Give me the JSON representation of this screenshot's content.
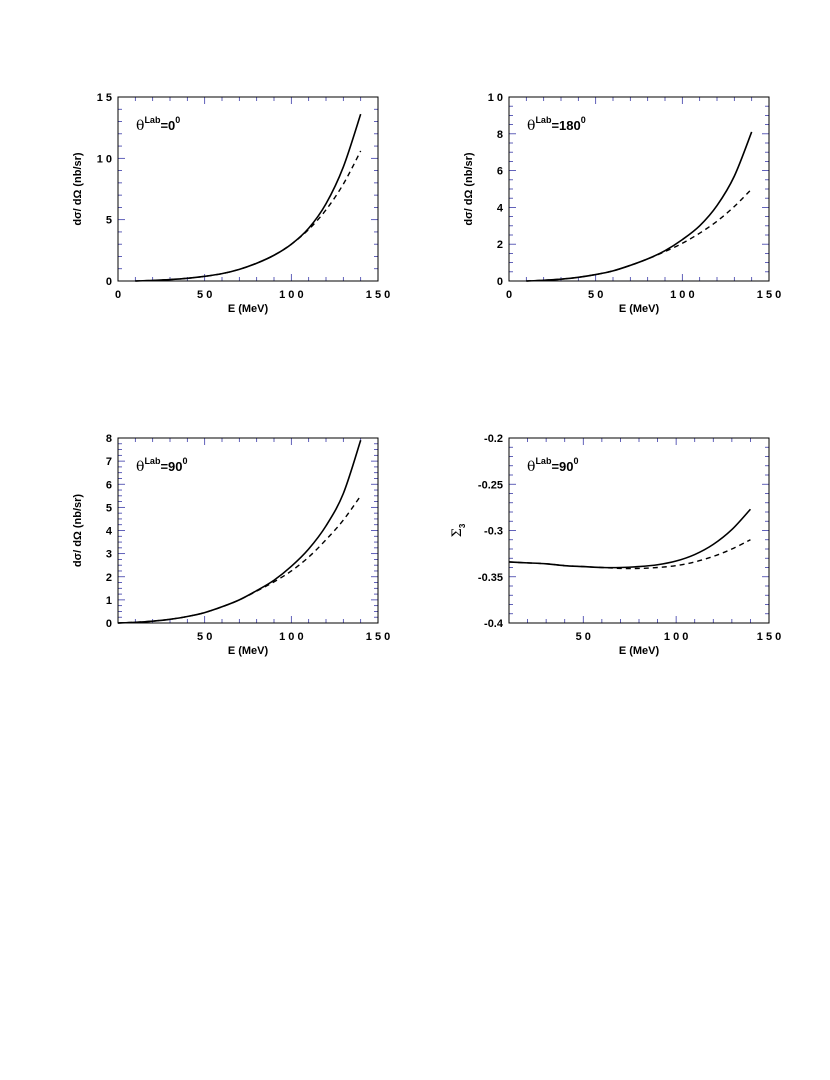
{
  "chart_data": [
    {
      "type": "line",
      "annotation": {
        "theta": "θ",
        "sup1": "Lab",
        "eq": "=0",
        "sup2": "0"
      },
      "xlabel": "E  (MeV)",
      "ylabel": "dσ/ dΩ  (nb/sr)",
      "xlim": [
        0,
        150
      ],
      "ylim": [
        0,
        15
      ],
      "xticks": [
        0,
        50,
        100,
        150
      ],
      "xtick_labels": [
        "0",
        "5 0",
        "1 0 0",
        "1 5 0"
      ],
      "yticks": [
        0,
        5,
        10,
        15
      ],
      "ytick_labels": [
        "0",
        "5",
        "1 0",
        "1 5"
      ],
      "series": [
        {
          "style": "solid",
          "x": [
            10,
            20,
            30,
            40,
            50,
            60,
            70,
            80,
            90,
            100,
            110,
            120,
            130,
            140
          ],
          "y": [
            0.0,
            0.05,
            0.12,
            0.22,
            0.38,
            0.6,
            0.95,
            1.45,
            2.1,
            3.0,
            4.3,
            6.3,
            9.3,
            13.6
          ]
        },
        {
          "style": "dashed",
          "x": [
            10,
            20,
            30,
            40,
            50,
            60,
            70,
            80,
            90,
            100,
            110,
            120,
            130,
            140
          ],
          "y": [
            0.0,
            0.05,
            0.12,
            0.22,
            0.38,
            0.6,
            0.95,
            1.45,
            2.1,
            3.0,
            4.2,
            5.8,
            7.9,
            10.6
          ]
        }
      ]
    },
    {
      "type": "line",
      "annotation": {
        "theta": "θ",
        "sup1": "Lab",
        "eq": "=180",
        "sup2": "0"
      },
      "xlabel": "E  (MeV)",
      "ylabel": "dσ/ dΩ  (nb/sr)",
      "xlim": [
        0,
        150
      ],
      "ylim": [
        0,
        10
      ],
      "xticks": [
        0,
        50,
        100,
        150
      ],
      "xtick_labels": [
        "0",
        "5 0",
        "1 0 0",
        "1 5 0"
      ],
      "yticks": [
        0,
        2,
        4,
        6,
        8,
        10
      ],
      "ytick_labels": [
        "0",
        "2",
        "4",
        "6",
        "8",
        "1 0"
      ],
      "series": [
        {
          "style": "solid",
          "x": [
            10,
            20,
            30,
            40,
            50,
            60,
            70,
            80,
            90,
            100,
            110,
            120,
            130,
            140
          ],
          "y": [
            0.0,
            0.04,
            0.1,
            0.2,
            0.35,
            0.55,
            0.85,
            1.2,
            1.65,
            2.25,
            3.0,
            4.1,
            5.7,
            8.1
          ]
        },
        {
          "style": "dashed",
          "x": [
            10,
            20,
            30,
            40,
            50,
            60,
            70,
            80,
            90,
            100,
            110,
            120,
            130,
            140
          ],
          "y": [
            0.0,
            0.04,
            0.1,
            0.2,
            0.35,
            0.55,
            0.85,
            1.2,
            1.6,
            2.05,
            2.6,
            3.25,
            4.05,
            5.0
          ]
        }
      ]
    },
    {
      "type": "line",
      "annotation": {
        "theta": "θ",
        "sup1": "Lab",
        "eq": "=90",
        "sup2": "0"
      },
      "xlabel": "E  (MeV)",
      "ylabel": "dσ/ dΩ  (nb/sr)",
      "xlim": [
        0,
        150
      ],
      "ylim": [
        0,
        8
      ],
      "xticks": [
        50,
        100,
        150
      ],
      "xtick_labels": [
        "5 0",
        "1 0 0",
        "1 5 0"
      ],
      "yticks": [
        0,
        1,
        2,
        3,
        4,
        5,
        6,
        7,
        8
      ],
      "ytick_labels": [
        "0",
        "1",
        "2",
        "3",
        "4",
        "5",
        "6",
        "7",
        "8"
      ],
      "series": [
        {
          "style": "solid",
          "x": [
            0,
            10,
            20,
            30,
            40,
            50,
            60,
            70,
            80,
            90,
            100,
            110,
            120,
            130,
            140
          ],
          "y": [
            0.0,
            0.03,
            0.08,
            0.16,
            0.28,
            0.45,
            0.7,
            1.0,
            1.4,
            1.85,
            2.45,
            3.2,
            4.2,
            5.6,
            7.9
          ]
        },
        {
          "style": "dashed",
          "x": [
            0,
            10,
            20,
            30,
            40,
            50,
            60,
            70,
            80,
            90,
            100,
            110,
            120,
            130,
            140
          ],
          "y": [
            0.0,
            0.03,
            0.08,
            0.16,
            0.28,
            0.45,
            0.7,
            1.0,
            1.38,
            1.78,
            2.25,
            2.85,
            3.6,
            4.45,
            5.5
          ]
        }
      ]
    },
    {
      "type": "line",
      "annotation": {
        "theta": "θ",
        "sup1": "Lab",
        "eq": "=90",
        "sup2": "0"
      },
      "xlabel": "E  (MeV)",
      "ylabel": "Σ",
      "ylabel_sub": "3",
      "xlim": [
        10,
        150
      ],
      "ylim": [
        -0.4,
        -0.2
      ],
      "xticks": [
        50,
        100,
        150
      ],
      "xtick_labels": [
        "5 0",
        "1 0 0",
        "1 5 0"
      ],
      "yticks": [
        -0.4,
        -0.35,
        -0.3,
        -0.25,
        -0.2
      ],
      "ytick_labels": [
        "-0.4",
        "-0.35",
        "-0.3",
        "-0.25",
        "-0.2"
      ],
      "series": [
        {
          "style": "solid",
          "x": [
            10,
            20,
            30,
            40,
            50,
            60,
            70,
            80,
            90,
            100,
            110,
            120,
            130,
            140
          ],
          "y": [
            -0.334,
            -0.335,
            -0.336,
            -0.338,
            -0.339,
            -0.34,
            -0.34,
            -0.339,
            -0.337,
            -0.333,
            -0.326,
            -0.315,
            -0.299,
            -0.277
          ]
        },
        {
          "style": "dashed",
          "x": [
            10,
            20,
            30,
            40,
            50,
            60,
            70,
            80,
            90,
            100,
            110,
            120,
            130,
            140
          ],
          "y": [
            -0.334,
            -0.335,
            -0.336,
            -0.338,
            -0.339,
            -0.34,
            -0.341,
            -0.341,
            -0.34,
            -0.338,
            -0.334,
            -0.328,
            -0.32,
            -0.31
          ]
        }
      ]
    }
  ]
}
